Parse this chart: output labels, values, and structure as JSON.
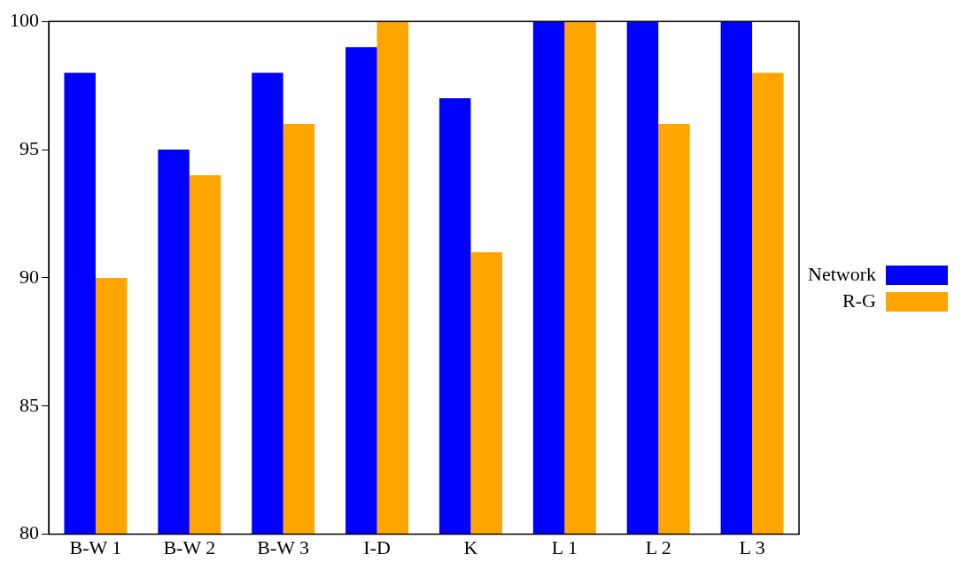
{
  "chart_data": {
    "type": "bar",
    "categories": [
      "B-W 1",
      "B-W 2",
      "B-W 3",
      "I-D",
      "K",
      "L 1",
      "L 2",
      "L 3"
    ],
    "series": [
      {
        "name": "Network",
        "color": "#0000ff",
        "values": [
          98,
          95,
          98,
          99,
          97,
          100,
          100,
          100
        ]
      },
      {
        "name": "R-G",
        "color": "#ffa500",
        "values": [
          90,
          94,
          96,
          100,
          91,
          100,
          96,
          98
        ]
      }
    ],
    "ylim": [
      80,
      100
    ],
    "yticks": [
      80,
      85,
      90,
      95,
      100
    ],
    "grid": false,
    "legend": "right"
  }
}
